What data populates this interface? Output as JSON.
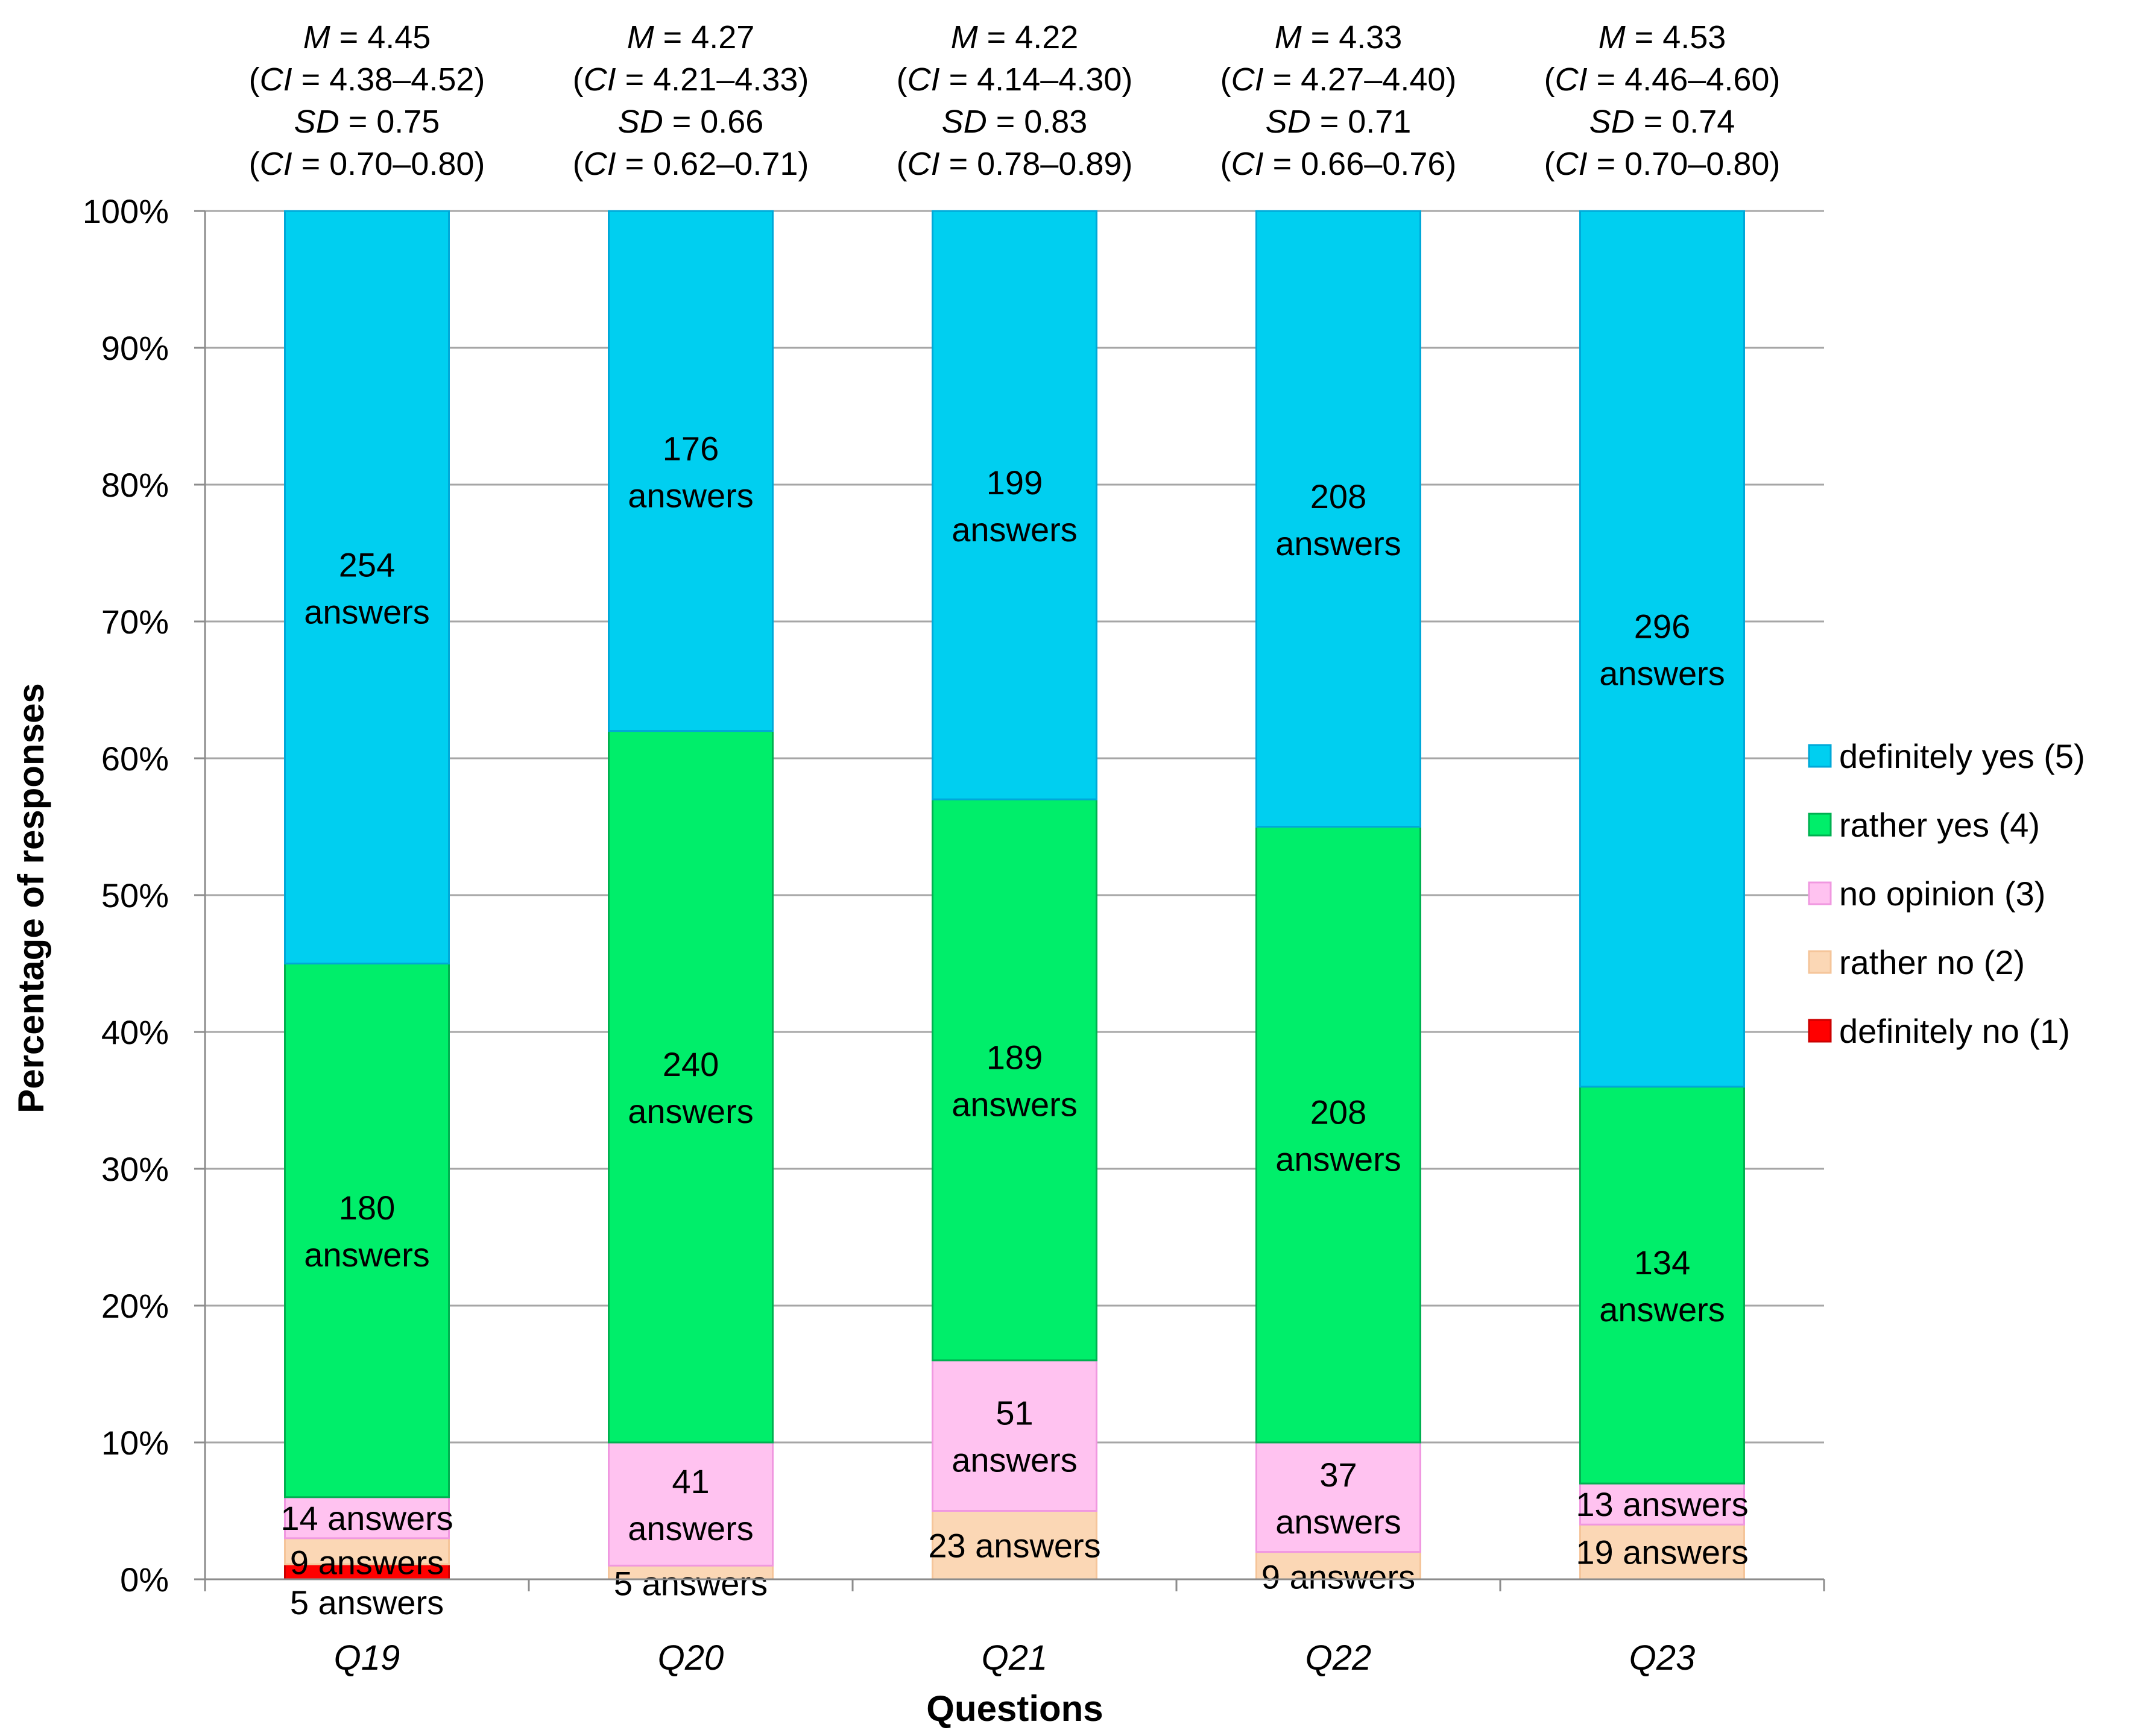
{
  "chart_data": {
    "type": "bar",
    "stacked": true,
    "percent": true,
    "xlabel": "Questions",
    "ylabel": "Percentage of responses",
    "ylim": [
      0,
      100
    ],
    "ytick_labels": [
      "0%",
      "10%",
      "20%",
      "30%",
      "40%",
      "50%",
      "60%",
      "70%",
      "80%",
      "90%",
      "100%"
    ],
    "grid": true,
    "legend_position": "right",
    "categories": [
      "Q19",
      "Q20",
      "Q21",
      "Q22",
      "Q23"
    ],
    "series": [
      {
        "name": "definitely no (1)",
        "color": "#FF0000",
        "border": "#CC0000",
        "values": [
          1.1,
          0.0,
          0.0,
          0.0,
          0.0
        ],
        "labels": [
          "5 answers",
          "",
          "",
          "",
          ""
        ]
      },
      {
        "name": "rather no (2)",
        "color": "#FBD7B5",
        "border": "#F5C59A",
        "values": [
          1.9,
          1.0,
          5.0,
          2.0,
          4.0
        ],
        "labels": [
          "9 answers",
          "5 answers",
          "23 answers",
          "9 answers",
          "19 answers"
        ]
      },
      {
        "name": "no opinion (3)",
        "color": "#FFC2F0",
        "border": "#F098E0",
        "values": [
          3.0,
          9.0,
          11.0,
          8.0,
          3.0
        ],
        "labels": [
          "14 answers",
          "41 answers",
          "51 answers",
          "37 answers",
          "13 answers"
        ]
      },
      {
        "name": "rather yes (4)",
        "color": "#00EE6A",
        "border": "#00B050",
        "values": [
          39.0,
          52.0,
          41.0,
          45.0,
          29.0
        ],
        "labels": [
          "180 answers",
          "240 answers",
          "189 answers",
          "208 answers",
          "134 answers"
        ]
      },
      {
        "name": "definitely yes (5)",
        "color": "#00CFF0",
        "border": "#00A8D8",
        "values": [
          55.0,
          38.0,
          43.0,
          45.0,
          64.0
        ],
        "labels": [
          "254 answers",
          "176 answers",
          "199 answers",
          "208 answers",
          "296 answers"
        ]
      }
    ],
    "stats": [
      {
        "mean": "4.45",
        "mean_ci": "4.38–4.52",
        "sd": "0.75",
        "sd_ci": "0.70–0.80"
      },
      {
        "mean": "4.27",
        "mean_ci": "4.21–4.33",
        "sd": "0.66",
        "sd_ci": "0.62–0.71"
      },
      {
        "mean": "4.22",
        "mean_ci": "4.14–4.30",
        "sd": "0.83",
        "sd_ci": "0.78–0.89"
      },
      {
        "mean": "4.33",
        "mean_ci": "4.27–4.40",
        "sd": "0.71",
        "sd_ci": "0.66–0.76"
      },
      {
        "mean": "4.53",
        "mean_ci": "4.46–4.60",
        "sd": "0.74",
        "sd_ci": "0.70–0.80"
      }
    ],
    "stat_symbols": {
      "mean": "M",
      "ci": "CI",
      "sd": "SD"
    }
  }
}
